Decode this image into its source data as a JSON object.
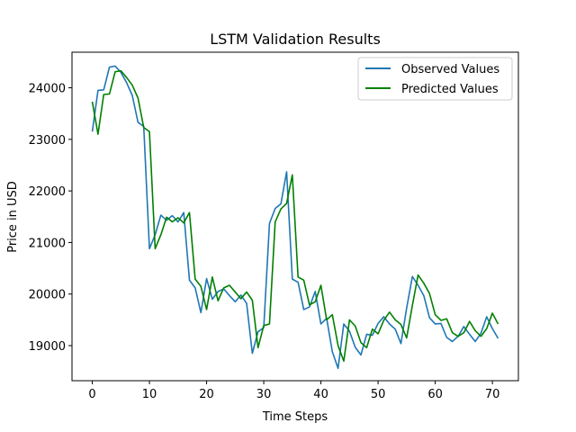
{
  "chart_data": {
    "type": "line",
    "title": "LSTM Validation Results",
    "xlabel": "Time Steps",
    "ylabel": "Price in USD",
    "xlim": [
      -3.55,
      74.55
    ],
    "ylim": [
      18320,
      24690
    ],
    "xticks": [
      0,
      10,
      20,
      30,
      40,
      50,
      60,
      70
    ],
    "yticks": [
      19000,
      20000,
      21000,
      22000,
      23000,
      24000
    ],
    "legend_position": "top-right",
    "grid": false,
    "series": [
      {
        "name": "Observed Values",
        "color": "#1f77b4",
        "values": [
          23150,
          23950,
          23960,
          24400,
          24420,
          24300,
          24100,
          23850,
          23330,
          23250,
          20880,
          21150,
          21530,
          21430,
          21520,
          21400,
          21580,
          20270,
          20120,
          19640,
          20300,
          19900,
          20050,
          20100,
          19970,
          19850,
          19980,
          19820,
          18850,
          19270,
          19350,
          21370,
          21660,
          21750,
          22370,
          20290,
          20230,
          19700,
          19750,
          20050,
          19420,
          19530,
          18880,
          18560,
          19420,
          19280,
          18970,
          18820,
          19220,
          19200,
          19430,
          19560,
          19420,
          19320,
          19040,
          19730,
          20340,
          20170,
          19970,
          19540,
          19420,
          19430,
          19160,
          19080,
          19180,
          19370,
          19220,
          19080,
          19240,
          19560,
          19330,
          19140
        ]
      },
      {
        "name": "Predicted Values",
        "color": "#008000",
        "values": [
          23730,
          23100,
          23870,
          23880,
          24310,
          24330,
          24200,
          24050,
          23800,
          23230,
          23150,
          20880,
          21150,
          21490,
          21400,
          21480,
          21380,
          21580,
          20290,
          20150,
          19700,
          20330,
          19870,
          20120,
          20170,
          20040,
          19910,
          20040,
          19880,
          18960,
          19390,
          19420,
          21400,
          21650,
          21760,
          22310,
          20330,
          20270,
          19790,
          19850,
          20170,
          19500,
          19600,
          19000,
          18700,
          19500,
          19380,
          19060,
          18960,
          19320,
          19230,
          19490,
          19650,
          19500,
          19410,
          19150,
          19780,
          20370,
          20210,
          20010,
          19600,
          19490,
          19520,
          19250,
          19180,
          19250,
          19470,
          19290,
          19180,
          19330,
          19630,
          19420
        ]
      }
    ]
  }
}
